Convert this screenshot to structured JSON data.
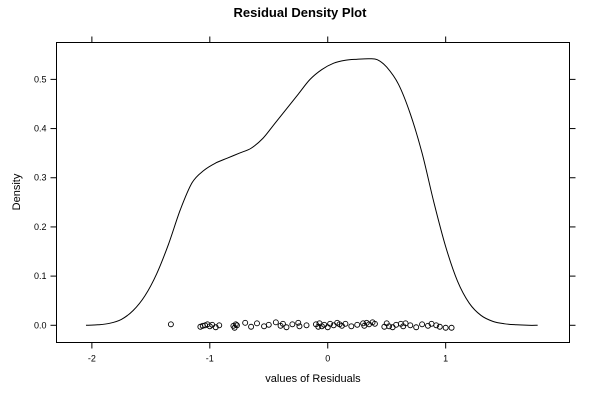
{
  "chart_data": {
    "type": "line",
    "title": "Residual Density Plot",
    "xlabel": "values of Residuals",
    "ylabel": "Density",
    "xlim": [
      -2.3,
      2.05
    ],
    "ylim": [
      -0.035,
      0.575
    ],
    "x_ticks": [
      -2,
      -1,
      0,
      1
    ],
    "y_ticks": [
      0.0,
      0.1,
      0.2,
      0.3,
      0.4,
      0.5
    ],
    "x_tick_labels": [
      "-2",
      "-1",
      "0",
      "1"
    ],
    "y_tick_labels": [
      "0.0",
      "0.1",
      "0.2",
      "0.3",
      "0.4",
      "0.5"
    ],
    "grid": false,
    "colors": {
      "line": "#000000",
      "axes": "#000000",
      "background": "#ffffff"
    },
    "series": [
      {
        "kind": "density-curve",
        "x": [
          -2.05,
          -1.95,
          -1.85,
          -1.75,
          -1.65,
          -1.55,
          -1.45,
          -1.35,
          -1.25,
          -1.15,
          -1.05,
          -0.95,
          -0.85,
          -0.75,
          -0.65,
          -0.55,
          -0.45,
          -0.35,
          -0.25,
          -0.15,
          -0.05,
          0.05,
          0.15,
          0.25,
          0.35,
          0.42,
          0.5,
          0.6,
          0.7,
          0.8,
          0.9,
          1.0,
          1.1,
          1.2,
          1.3,
          1.4,
          1.5,
          1.6,
          1.7,
          1.78
        ],
        "y": [
          0.0,
          0.001,
          0.004,
          0.012,
          0.03,
          0.06,
          0.105,
          0.165,
          0.235,
          0.29,
          0.315,
          0.33,
          0.34,
          0.35,
          0.36,
          0.38,
          0.41,
          0.44,
          0.47,
          0.5,
          0.52,
          0.533,
          0.539,
          0.541,
          0.542,
          0.54,
          0.525,
          0.49,
          0.43,
          0.35,
          0.25,
          0.16,
          0.09,
          0.045,
          0.02,
          0.008,
          0.003,
          0.001,
          0.0,
          0.0
        ]
      },
      {
        "kind": "rug-points",
        "x": [
          -1.33,
          -1.08,
          -1.06,
          -1.04,
          -1.02,
          -1.0,
          -0.98,
          -0.95,
          -0.92,
          -0.8,
          -0.79,
          -0.78,
          -0.77,
          -0.7,
          -0.65,
          -0.6,
          -0.54,
          -0.5,
          -0.44,
          -0.4,
          -0.38,
          -0.35,
          -0.3,
          -0.25,
          -0.24,
          -0.18,
          -0.1,
          -0.08,
          -0.07,
          -0.05,
          -0.03,
          0.0,
          0.02,
          0.05,
          0.08,
          0.1,
          0.12,
          0.15,
          0.2,
          0.25,
          0.3,
          0.31,
          0.33,
          0.35,
          0.38,
          0.4,
          0.48,
          0.5,
          0.52,
          0.55,
          0.58,
          0.62,
          0.64,
          0.66,
          0.7,
          0.75,
          0.8,
          0.85,
          0.88,
          0.92,
          0.95,
          1.0,
          1.05
        ],
        "y": [
          0.002,
          -0.003,
          -0.001,
          0.0,
          0.002,
          -0.002,
          0.001,
          -0.004,
          0.0,
          -0.001,
          -0.005,
          0.002,
          0.0,
          0.005,
          -0.003,
          0.004,
          -0.002,
          0.001,
          0.006,
          -0.001,
          0.003,
          -0.004,
          0.002,
          0.005,
          -0.002,
          0.0,
          0.002,
          -0.003,
          0.004,
          -0.002,
          0.001,
          -0.004,
          0.003,
          0.0,
          0.005,
          0.002,
          -0.001,
          0.003,
          -0.002,
          0.001,
          0.004,
          -0.001,
          0.005,
          0.002,
          0.006,
          0.003,
          -0.003,
          0.004,
          -0.002,
          -0.004,
          0.001,
          0.003,
          -0.002,
          0.004,
          0.0,
          -0.004,
          0.002,
          -0.001,
          0.003,
          0.0,
          -0.003,
          -0.005,
          -0.005
        ]
      }
    ]
  }
}
